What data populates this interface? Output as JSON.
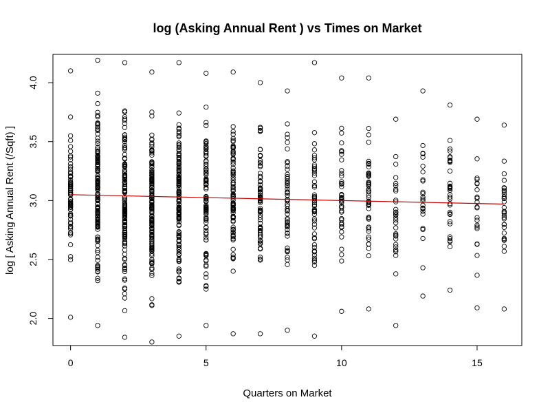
{
  "chart_data": {
    "type": "scatter",
    "title": "log (Asking Annual Rent ) vs Times on Market",
    "xlabel": "Quarters on Market",
    "ylabel": "log [ Asking Annual Rent (/Sqft) ]",
    "xlim": [
      -0.65,
      16.65
    ],
    "ylim": [
      1.77,
      4.24
    ],
    "xticks": [
      0,
      5,
      10,
      15
    ],
    "yticks": [
      2.0,
      2.5,
      3.0,
      3.5,
      4.0
    ],
    "xtick_labels": [
      "0",
      "5",
      "10",
      "15"
    ],
    "ytick_labels": [
      "2.0",
      "2.5",
      "3.0",
      "3.5",
      "4.0"
    ],
    "point_color": "#000000",
    "columns": [
      {
        "x": 0,
        "min": 2.01,
        "max": 4.1,
        "count": 70
      },
      {
        "x": 1,
        "min": 1.94,
        "max": 4.19,
        "count": 140
      },
      {
        "x": 2,
        "min": 1.84,
        "max": 4.17,
        "count": 150
      },
      {
        "x": 3,
        "min": 1.8,
        "max": 4.09,
        "count": 150
      },
      {
        "x": 4,
        "min": 1.85,
        "max": 4.17,
        "count": 140
      },
      {
        "x": 5,
        "min": 1.94,
        "max": 4.08,
        "count": 90
      },
      {
        "x": 6,
        "min": 1.87,
        "max": 4.09,
        "count": 90
      },
      {
        "x": 7,
        "min": 1.87,
        "max": 4.0,
        "count": 75
      },
      {
        "x": 8,
        "min": 1.9,
        "max": 3.93,
        "count": 55
      },
      {
        "x": 9,
        "min": 1.85,
        "max": 4.17,
        "count": 50
      },
      {
        "x": 10,
        "min": 2.06,
        "max": 4.04,
        "count": 45
      },
      {
        "x": 11,
        "min": 2.08,
        "max": 4.04,
        "count": 45
      },
      {
        "x": 12,
        "min": 1.94,
        "max": 3.69,
        "count": 32
      },
      {
        "x": 13,
        "min": 2.19,
        "max": 3.93,
        "count": 25
      },
      {
        "x": 14,
        "min": 2.24,
        "max": 3.81,
        "count": 35
      },
      {
        "x": 15,
        "min": 2.09,
        "max": 3.69,
        "count": 22
      },
      {
        "x": 16,
        "min": 2.08,
        "max": 3.64,
        "count": 30
      }
    ],
    "trend_line": {
      "color": "#cc0000",
      "x": [
        0,
        16
      ],
      "y": [
        3.05,
        2.97
      ]
    },
    "grid": false
  }
}
